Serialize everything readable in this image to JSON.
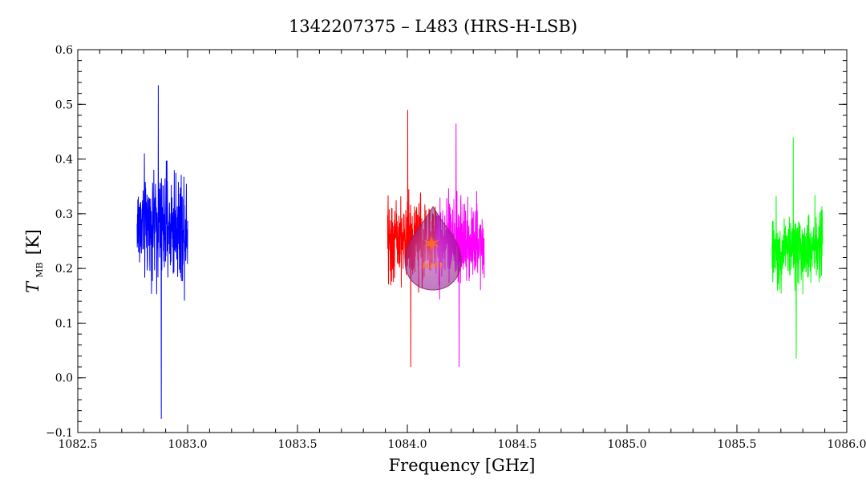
{
  "chart_data": {
    "type": "line",
    "title": "1342207375 – L483 (HRS-H-LSB)",
    "xlabel": "Frequency [GHz]",
    "ylabel_main": "T",
    "ylabel_sub": "MB",
    "ylabel_unit": "[K]",
    "xlim": [
      1082.5,
      1086.0
    ],
    "ylim": [
      -0.1,
      0.6
    ],
    "xticks": [
      "1082.5",
      "1083.0",
      "1083.5",
      "1084.0",
      "1084.5",
      "1085.0",
      "1085.5",
      "1086.0"
    ],
    "yticks": [
      "−0.1",
      "0.0",
      "0.1",
      "0.2",
      "0.3",
      "0.4",
      "0.5",
      "0.6"
    ],
    "grid": false,
    "series": [
      {
        "color": "#0000ff",
        "x_range": [
          1082.77,
          1083.0
        ],
        "mean": 0.28,
        "min": -0.075,
        "max": 0.535
      },
      {
        "color": "#ff0000",
        "x_range": [
          1083.91,
          1084.13
        ],
        "mean": 0.25,
        "min": 0.02,
        "max": 0.49
      },
      {
        "color": "#ff00ff",
        "x_range": [
          1084.13,
          1084.35
        ],
        "mean": 0.25,
        "min": 0.02,
        "max": 0.465
      },
      {
        "color": "#00ff00",
        "x_range": [
          1085.66,
          1085.89
        ],
        "mean": 0.24,
        "min": 0.035,
        "max": 0.44
      }
    ],
    "watermark_text": "HIFI"
  }
}
